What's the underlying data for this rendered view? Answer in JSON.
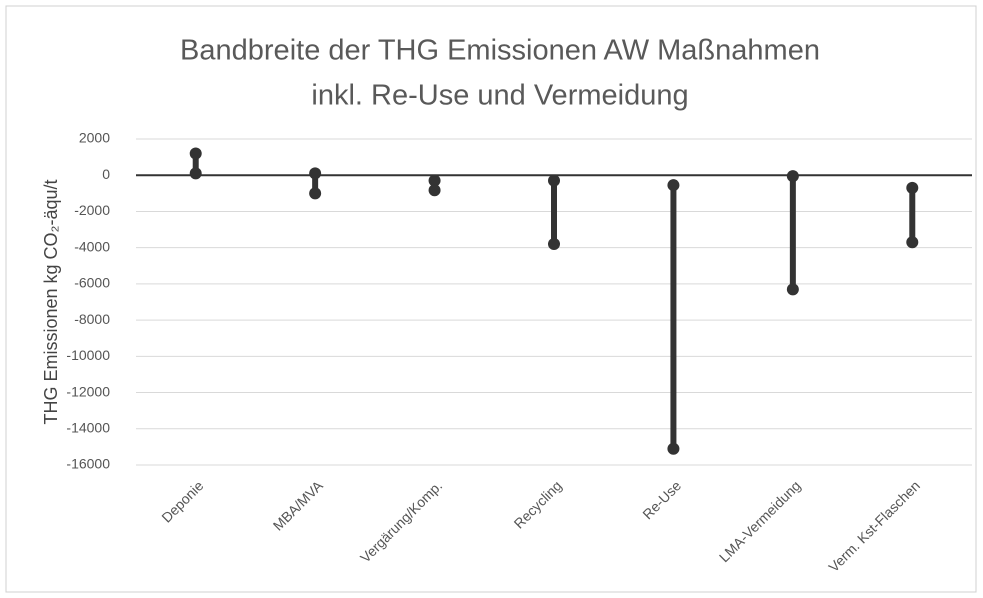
{
  "chart_data": {
    "type": "range",
    "title": [
      "Bandbreite der THG Emissionen AW Maßnahmen",
      "inkl. Re-Use und Vermeidung"
    ],
    "y_label": "THG Emissionen kg CO₂-äqu/t",
    "categories": [
      "Deponie",
      "MBA/MVA",
      "Vergärung/Komp.",
      "Recycling",
      "Re-Use",
      "LMA-Vermeidung",
      "Verm. Kst-Flaschen"
    ],
    "high": [
      1200,
      100,
      -300,
      -300,
      -550,
      -50,
      -700
    ],
    "low": [
      100,
      -1000,
      -830,
      -3800,
      -15100,
      -6300,
      -3700
    ],
    "color": "#333333",
    "ylim": [
      -16000,
      2000
    ],
    "yticks": [
      2000,
      0,
      -2000,
      -4000,
      -6000,
      -8000,
      -10000,
      -12000,
      -14000,
      -16000
    ],
    "grid": true
  }
}
